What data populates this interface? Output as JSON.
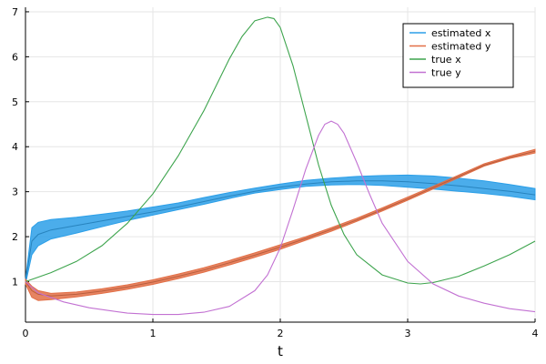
{
  "chart_data": {
    "type": "line",
    "title": "",
    "xlabel": "t",
    "ylabel": "",
    "xlim": [
      0,
      4
    ],
    "ylim": [
      0.1,
      7.1
    ],
    "xticks": [
      0,
      1,
      2,
      3,
      4
    ],
    "yticks": [
      1,
      2,
      3,
      4,
      5,
      6,
      7
    ],
    "grid": true,
    "legend_position": "top-right",
    "colors": {
      "estimated x": "#2b9fe8",
      "estimated y": "#e26f46",
      "true x": "#3da44d",
      "true y": "#c271d2"
    },
    "series": [
      {
        "name": "estimated x",
        "band": true,
        "x": [
          0,
          0.05,
          0.1,
          0.2,
          0.4,
          0.6,
          0.8,
          1.0,
          1.2,
          1.4,
          1.6,
          1.8,
          2.0,
          2.2,
          2.4,
          2.6,
          2.8,
          3.0,
          3.2,
          3.4,
          3.6,
          3.8,
          4.0
        ],
        "lower": [
          0.95,
          1.6,
          1.8,
          1.95,
          2.08,
          2.22,
          2.36,
          2.48,
          2.6,
          2.72,
          2.85,
          2.97,
          3.05,
          3.12,
          3.15,
          3.16,
          3.14,
          3.1,
          3.06,
          3.01,
          2.96,
          2.9,
          2.82
        ],
        "mid": [
          1.0,
          1.9,
          2.05,
          2.15,
          2.25,
          2.35,
          2.45,
          2.55,
          2.66,
          2.78,
          2.9,
          3.01,
          3.1,
          3.17,
          3.22,
          3.24,
          3.24,
          3.22,
          3.18,
          3.13,
          3.07,
          3.01,
          2.93
        ],
        "upper": [
          1.05,
          2.2,
          2.32,
          2.38,
          2.43,
          2.5,
          2.57,
          2.66,
          2.75,
          2.87,
          2.98,
          3.08,
          3.17,
          3.25,
          3.3,
          3.34,
          3.36,
          3.37,
          3.35,
          3.3,
          3.24,
          3.16,
          3.07
        ]
      },
      {
        "name": "estimated y",
        "band": true,
        "x": [
          0,
          0.05,
          0.1,
          0.2,
          0.4,
          0.6,
          0.8,
          1.0,
          1.2,
          1.4,
          1.6,
          1.8,
          2.0,
          2.2,
          2.4,
          2.6,
          2.8,
          3.0,
          3.2,
          3.4,
          3.6,
          3.8,
          4.0
        ],
        "lower": [
          0.95,
          0.65,
          0.58,
          0.6,
          0.66,
          0.74,
          0.83,
          0.94,
          1.07,
          1.21,
          1.37,
          1.54,
          1.72,
          1.92,
          2.12,
          2.34,
          2.57,
          2.81,
          3.06,
          3.31,
          3.57,
          3.74,
          3.86
        ],
        "mid": [
          1.0,
          0.8,
          0.72,
          0.68,
          0.72,
          0.79,
          0.88,
          0.99,
          1.12,
          1.26,
          1.42,
          1.59,
          1.77,
          1.96,
          2.16,
          2.37,
          2.6,
          2.84,
          3.09,
          3.34,
          3.59,
          3.76,
          3.9
        ],
        "upper": [
          1.05,
          0.9,
          0.8,
          0.74,
          0.77,
          0.84,
          0.93,
          1.04,
          1.17,
          1.31,
          1.47,
          1.64,
          1.82,
          2.0,
          2.2,
          2.41,
          2.64,
          2.88,
          3.12,
          3.37,
          3.62,
          3.79,
          3.94
        ]
      },
      {
        "name": "true x",
        "x": [
          0,
          0.2,
          0.4,
          0.6,
          0.8,
          1.0,
          1.2,
          1.4,
          1.6,
          1.7,
          1.8,
          1.9,
          1.95,
          2.0,
          2.1,
          2.2,
          2.3,
          2.4,
          2.5,
          2.6,
          2.8,
          3.0,
          3.1,
          3.2,
          3.4,
          3.6,
          3.8,
          4.0
        ],
        "y": [
          1.0,
          1.2,
          1.45,
          1.8,
          2.3,
          2.95,
          3.8,
          4.8,
          5.95,
          6.45,
          6.8,
          6.88,
          6.85,
          6.65,
          5.8,
          4.7,
          3.6,
          2.7,
          2.05,
          1.6,
          1.15,
          0.97,
          0.95,
          0.98,
          1.12,
          1.35,
          1.6,
          1.9
        ]
      },
      {
        "name": "true y",
        "x": [
          0,
          0.1,
          0.3,
          0.5,
          0.8,
          1.0,
          1.2,
          1.4,
          1.6,
          1.8,
          1.9,
          2.0,
          2.1,
          2.2,
          2.3,
          2.35,
          2.4,
          2.45,
          2.5,
          2.6,
          2.7,
          2.8,
          3.0,
          3.2,
          3.4,
          3.6,
          3.8,
          4.0
        ],
        "y": [
          1.0,
          0.75,
          0.55,
          0.42,
          0.3,
          0.27,
          0.27,
          0.32,
          0.45,
          0.8,
          1.15,
          1.75,
          2.6,
          3.5,
          4.25,
          4.5,
          4.57,
          4.5,
          4.3,
          3.65,
          2.95,
          2.3,
          1.45,
          0.95,
          0.68,
          0.52,
          0.4,
          0.33
        ]
      }
    ]
  }
}
